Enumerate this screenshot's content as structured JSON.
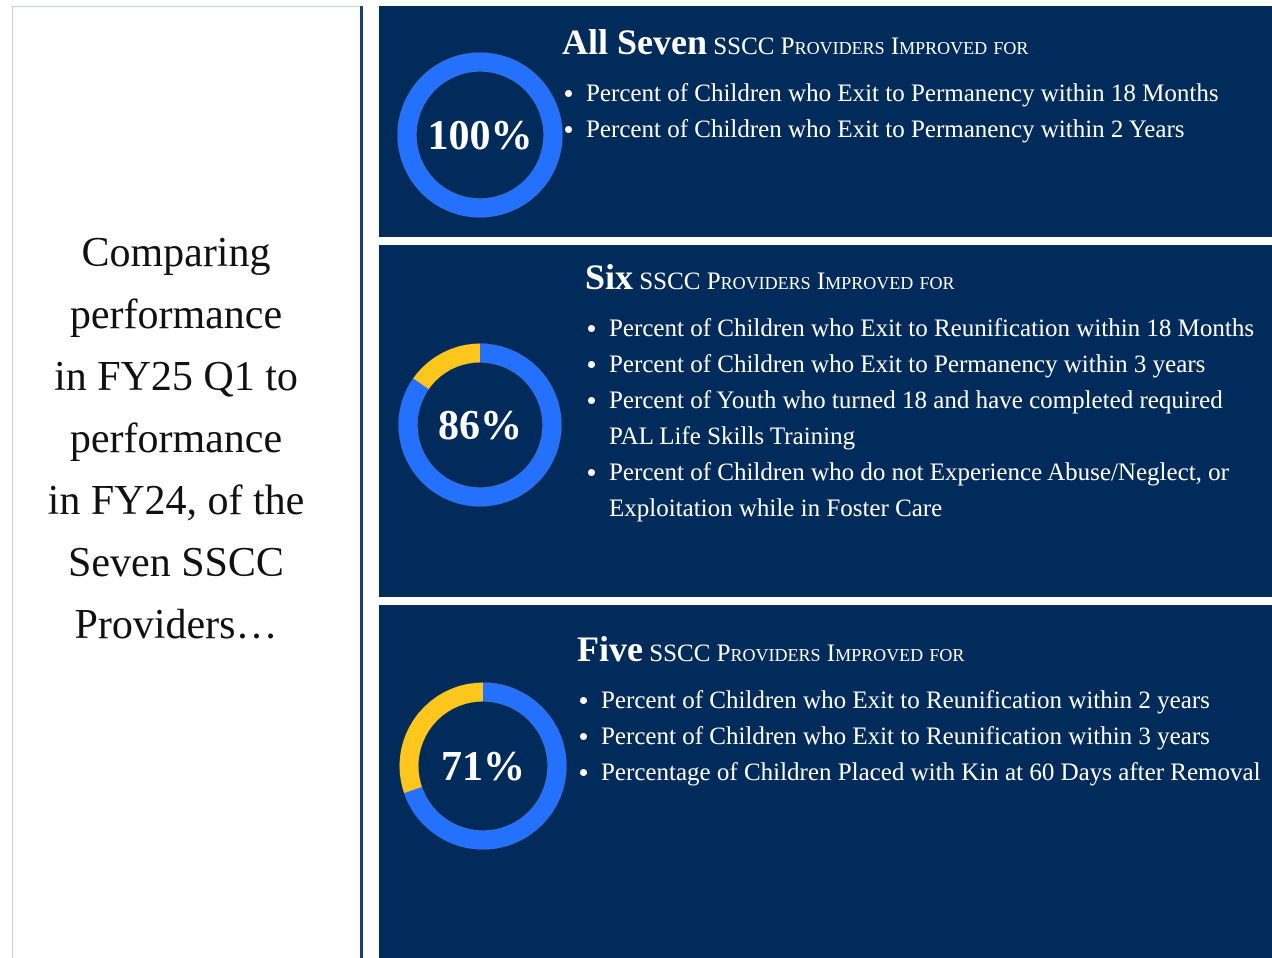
{
  "intro": {
    "lines": [
      "Comparing",
      "performance",
      "in FY25 Q1 to",
      "performance",
      "in FY24, of the",
      "Seven SSCC",
      "Providers…"
    ]
  },
  "panels": [
    {
      "value": 100,
      "value_label": "100%",
      "lead": "All Seven",
      "heading": "SSCC Providers Improved for",
      "items": [
        "Percent of Children who Exit to Permanency within 18 Months",
        "Percent of Children who Exit to Permanency within 2 Years"
      ]
    },
    {
      "value": 86,
      "value_label": "86%",
      "lead": "Six",
      "heading": "SSCC Providers Improved for",
      "items": [
        "Percent of Children who Exit to Reunification within 18 Months",
        "Percent of Children who Exit to Permanency within 3 years",
        "Percent of Youth who turned 18 and have completed required PAL Life Skills Training",
        "Percent of Children who do not Experience Abuse/Neglect, or Exploitation while in Foster Care"
      ]
    },
    {
      "value": 71,
      "value_label": "71%",
      "lead": "Five",
      "heading": "SSCC Providers Improved for",
      "items": [
        "Percent of Children who Exit to Reunification within 2 years",
        "Percent of Children who Exit to Reunification within 3 years",
        "Percentage of Children Placed with Kin at 60 Days after Removal"
      ]
    }
  ]
}
